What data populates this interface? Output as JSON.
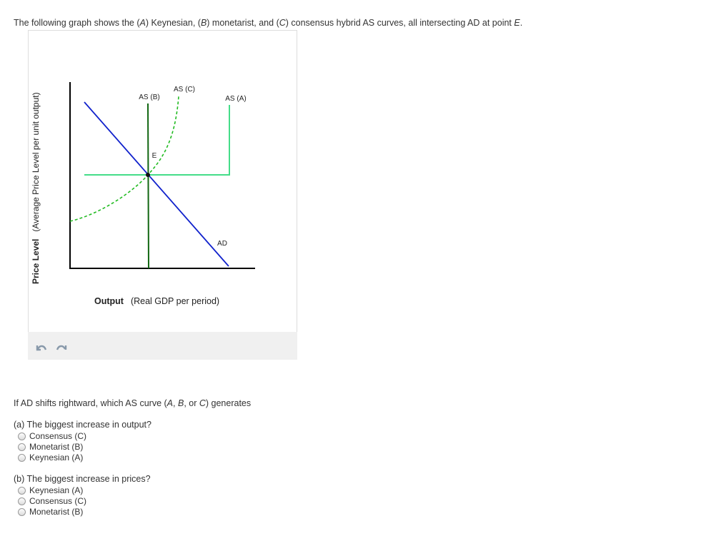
{
  "intro": [
    "The following graph shows the (",
    "A",
    ") Keynesian, (",
    "B",
    ") monetarist, and (",
    "C",
    ") consensus hybrid AS curves, all intersecting AD at point ",
    "E",
    "."
  ],
  "graph": {
    "y_axis_label": {
      "bold": "Price Level",
      "rest": "(Average Price Level per unit output)"
    },
    "x_axis_label": {
      "bold": "Output",
      "rest": "(Real GDP per period)"
    },
    "curve_labels": {
      "as_b": "AS (B)",
      "as_c": "AS (C)",
      "as_a": "AS (A)",
      "ad": "AD",
      "point": "E"
    }
  },
  "question": {
    "prompt": [
      "If AD shifts rightward, which AS curve (",
      "A",
      ", ",
      "B",
      ", or ",
      "C",
      ") generates"
    ],
    "parts": [
      {
        "label": "(a) The biggest increase in output?",
        "options": [
          "Consensus (C)",
          "Monetarist (B)",
          "Keynesian (A)"
        ]
      },
      {
        "label": "(b) The biggest increase in prices?",
        "options": [
          "Keynesian (A)",
          "Consensus (C)",
          "Monetarist (B)"
        ]
      }
    ]
  }
}
